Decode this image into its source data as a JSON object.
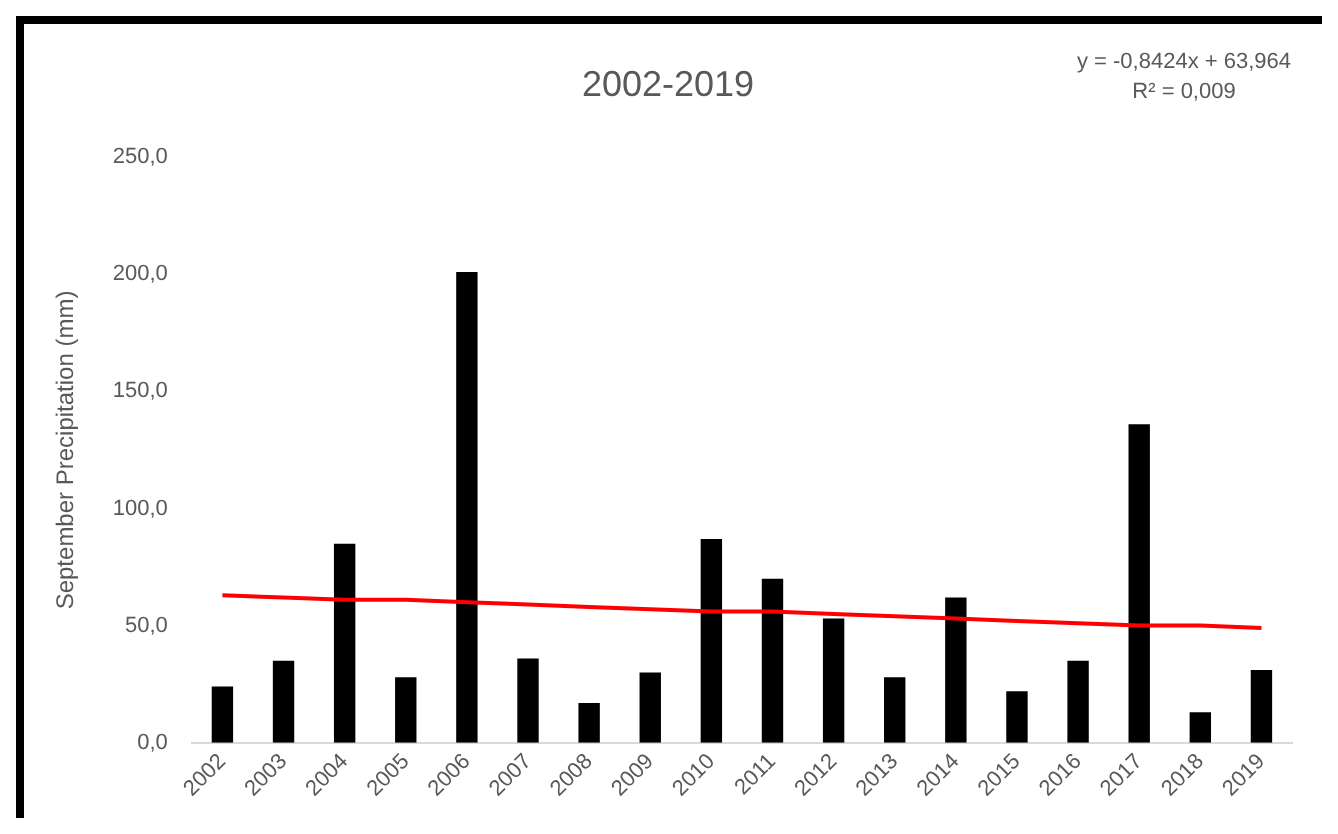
{
  "chart_data": {
    "type": "bar",
    "title": "2002-2019",
    "ylabel": "September Precipitation (mm)",
    "categories": [
      "2002",
      "2003",
      "2004",
      "2005",
      "2006",
      "2007",
      "2008",
      "2009",
      "2010",
      "2011",
      "2012",
      "2013",
      "2014",
      "2015",
      "2016",
      "2017",
      "2018",
      "2019"
    ],
    "series": [
      {
        "color": "#000000",
        "values": [
          24,
          35,
          85,
          28,
          201,
          36,
          17,
          30,
          87,
          70,
          53,
          28,
          62,
          22,
          35,
          136,
          13,
          31
        ]
      },
      {
        "type": "line",
        "color": "#ff0000",
        "values": [
          63,
          62,
          61,
          61,
          60,
          59,
          58,
          57,
          56,
          56,
          55,
          54,
          53,
          52,
          51,
          50,
          50,
          49
        ]
      }
    ],
    "ylim": [
      0,
      250
    ],
    "yticks": [
      {
        "value": 0,
        "label": "0,0"
      },
      {
        "value": 50,
        "label": "50,0"
      },
      {
        "value": 100,
        "label": "100,0"
      },
      {
        "value": 150,
        "label": "150,0"
      },
      {
        "value": 200,
        "label": "200,0"
      },
      {
        "value": 250,
        "label": "250,0"
      }
    ],
    "grid": false,
    "legend": false,
    "marker": "none",
    "annotations": [
      "y = -0,8424x + 63,964",
      "R² = 0,009"
    ]
  }
}
